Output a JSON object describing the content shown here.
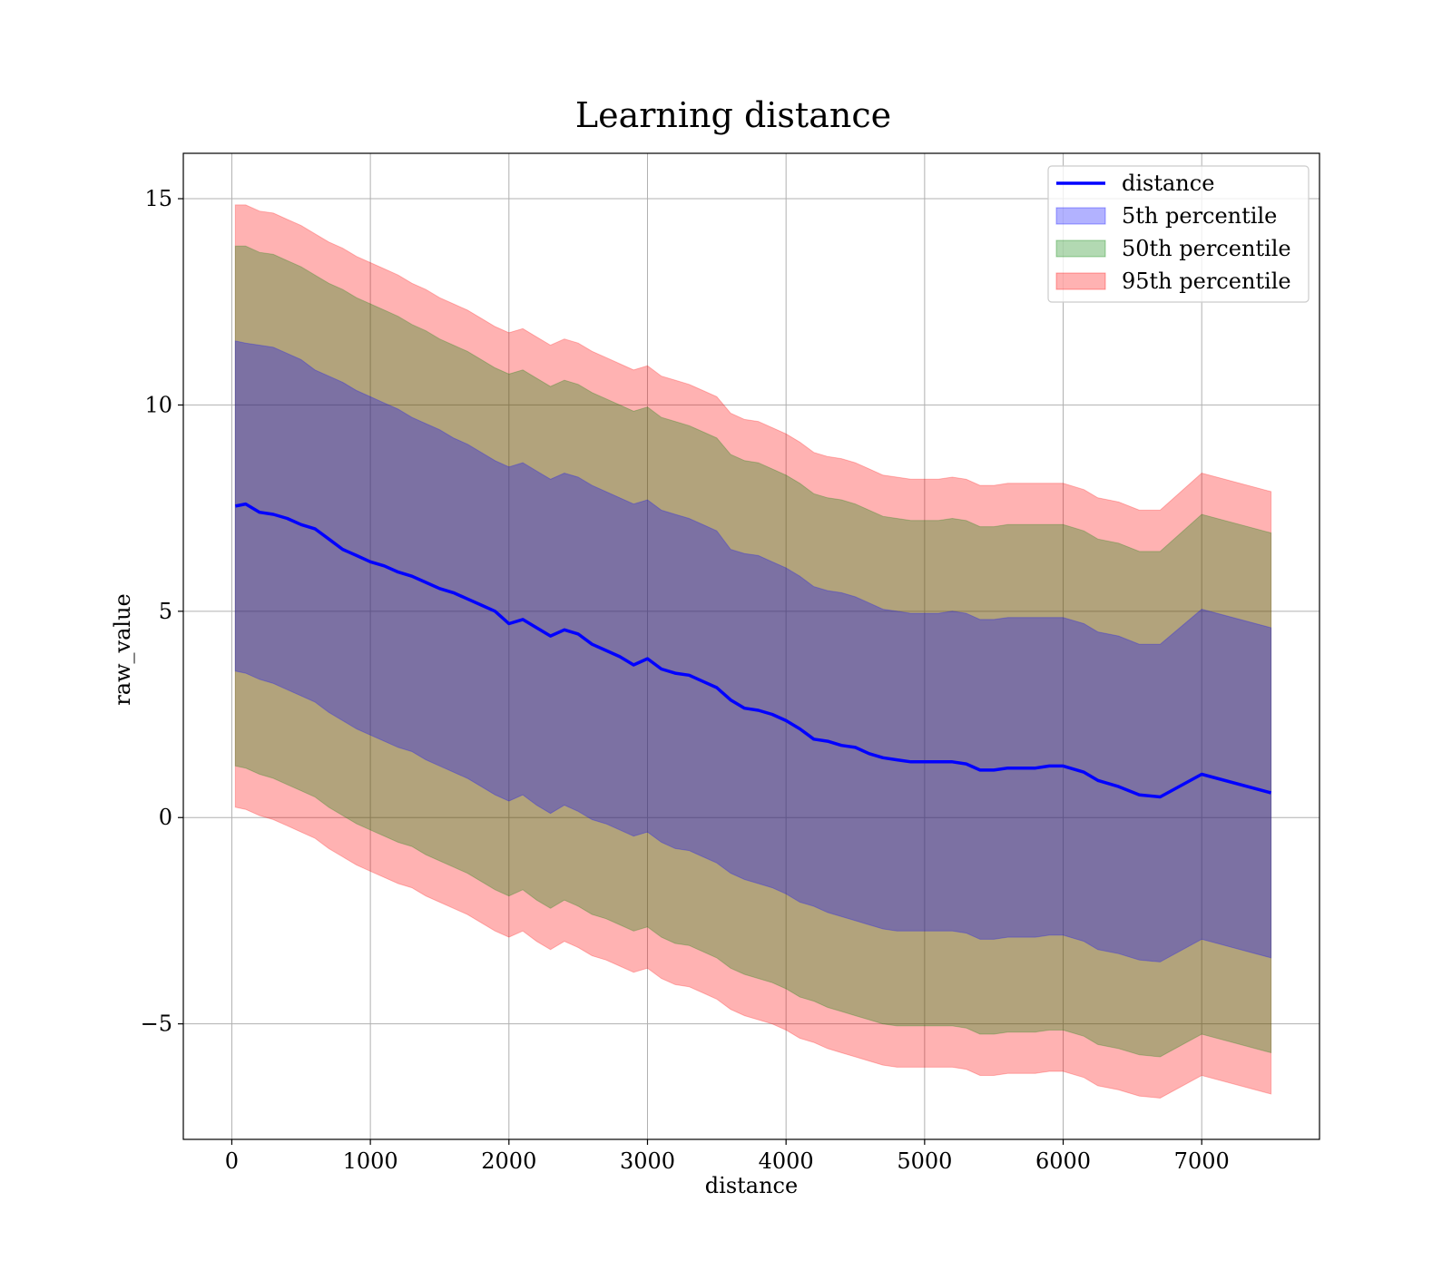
{
  "chart_data": {
    "type": "line",
    "title": "Learning distance",
    "xlabel": "distance",
    "ylabel": "raw_value",
    "xlim": [
      -350,
      7850
    ],
    "ylim": [
      -7.8,
      16.1
    ],
    "xticks": [
      0,
      1000,
      2000,
      3000,
      4000,
      5000,
      6000,
      7000
    ],
    "xtick_labels": [
      "0",
      "1000",
      "2000",
      "3000",
      "4000",
      "5000",
      "6000",
      "7000"
    ],
    "yticks": [
      -5,
      0,
      5,
      10,
      15
    ],
    "ytick_labels": [
      "−5",
      "0",
      "5",
      "10",
      "15"
    ],
    "grid": true,
    "legend_position": "top-right",
    "x": [
      25,
      100,
      200,
      300,
      400,
      500,
      600,
      700,
      800,
      900,
      1000,
      1100,
      1200,
      1300,
      1400,
      1500,
      1600,
      1700,
      1800,
      1900,
      2000,
      2100,
      2200,
      2300,
      2400,
      2500,
      2600,
      2700,
      2800,
      2900,
      3000,
      3100,
      3200,
      3300,
      3400,
      3500,
      3600,
      3700,
      3800,
      3900,
      4000,
      4100,
      4200,
      4300,
      4400,
      4500,
      4600,
      4700,
      4800,
      4900,
      5000,
      5100,
      5200,
      5300,
      5400,
      5500,
      5600,
      5700,
      5800,
      5900,
      6000,
      6150,
      6250,
      6400,
      6550,
      6700,
      7000,
      7500
    ],
    "series": [
      {
        "name": "distance",
        "kind": "line",
        "color": "#0000ff",
        "values": [
          7.55,
          7.6,
          7.4,
          7.35,
          7.25,
          7.1,
          7.0,
          6.75,
          6.5,
          6.35,
          6.2,
          6.1,
          5.95,
          5.85,
          5.7,
          5.55,
          5.45,
          5.3,
          5.15,
          5.0,
          4.7,
          4.8,
          4.6,
          4.4,
          4.55,
          4.45,
          4.2,
          4.05,
          3.9,
          3.7,
          3.85,
          3.6,
          3.5,
          3.45,
          3.3,
          3.15,
          2.85,
          2.65,
          2.6,
          2.5,
          2.35,
          2.15,
          1.9,
          1.85,
          1.75,
          1.7,
          1.55,
          1.45,
          1.4,
          1.35,
          1.35,
          1.35,
          1.35,
          1.3,
          1.15,
          1.15,
          1.2,
          1.2,
          1.2,
          1.25,
          1.25,
          1.1,
          0.9,
          0.75,
          0.55,
          0.5,
          1.05,
          0.6
        ]
      },
      {
        "name": "5th percentile",
        "kind": "band",
        "color": "#0000ff",
        "upper": [
          11.55,
          11.5,
          11.45,
          11.4,
          11.25,
          11.1,
          10.85,
          10.7,
          10.55,
          10.35,
          10.2,
          10.05,
          9.9,
          9.7,
          9.55,
          9.4,
          9.2,
          9.05,
          8.85,
          8.65,
          8.5,
          8.6,
          8.4,
          8.2,
          8.35,
          8.25,
          8.05,
          7.9,
          7.75,
          7.6,
          7.7,
          7.45,
          7.35,
          7.25,
          7.1,
          6.95,
          6.5,
          6.4,
          6.35,
          6.2,
          6.05,
          5.85,
          5.6,
          5.5,
          5.45,
          5.35,
          5.2,
          5.05,
          5.0,
          4.95,
          4.95,
          4.95,
          5.0,
          4.95,
          4.8,
          4.8,
          4.85,
          4.85,
          4.85,
          4.85,
          4.85,
          4.7,
          4.5,
          4.4,
          4.2,
          4.2,
          5.05,
          4.6
        ],
        "lower": [
          3.55,
          3.5,
          3.35,
          3.25,
          3.1,
          2.95,
          2.8,
          2.55,
          2.35,
          2.15,
          2.0,
          1.85,
          1.7,
          1.6,
          1.4,
          1.25,
          1.1,
          0.95,
          0.75,
          0.55,
          0.4,
          0.55,
          0.3,
          0.1,
          0.3,
          0.15,
          -0.05,
          -0.15,
          -0.3,
          -0.45,
          -0.35,
          -0.6,
          -0.75,
          -0.8,
          -0.95,
          -1.1,
          -1.35,
          -1.5,
          -1.6,
          -1.7,
          -1.85,
          -2.05,
          -2.15,
          -2.3,
          -2.4,
          -2.5,
          -2.6,
          -2.7,
          -2.75,
          -2.75,
          -2.75,
          -2.75,
          -2.75,
          -2.8,
          -2.95,
          -2.95,
          -2.9,
          -2.9,
          -2.9,
          -2.85,
          -2.85,
          -3.0,
          -3.2,
          -3.3,
          -3.45,
          -3.5,
          -2.95,
          -3.4
        ]
      },
      {
        "name": "50th percentile",
        "kind": "band",
        "color": "#008000",
        "upper": [
          13.85,
          13.85,
          13.7,
          13.65,
          13.5,
          13.35,
          13.15,
          12.95,
          12.8,
          12.6,
          12.45,
          12.3,
          12.15,
          11.95,
          11.8,
          11.6,
          11.45,
          11.3,
          11.1,
          10.9,
          10.75,
          10.85,
          10.65,
          10.45,
          10.6,
          10.5,
          10.3,
          10.15,
          10.0,
          9.85,
          9.95,
          9.7,
          9.6,
          9.5,
          9.35,
          9.2,
          8.8,
          8.65,
          8.6,
          8.45,
          8.3,
          8.1,
          7.85,
          7.75,
          7.7,
          7.6,
          7.45,
          7.3,
          7.25,
          7.2,
          7.2,
          7.2,
          7.25,
          7.2,
          7.05,
          7.05,
          7.1,
          7.1,
          7.1,
          7.1,
          7.1,
          6.95,
          6.75,
          6.65,
          6.45,
          6.45,
          7.35,
          6.9
        ],
        "lower": [
          1.25,
          1.2,
          1.05,
          0.95,
          0.8,
          0.65,
          0.5,
          0.25,
          0.05,
          -0.15,
          -0.3,
          -0.45,
          -0.6,
          -0.7,
          -0.9,
          -1.05,
          -1.2,
          -1.35,
          -1.55,
          -1.75,
          -1.9,
          -1.75,
          -2.0,
          -2.2,
          -2.0,
          -2.15,
          -2.35,
          -2.45,
          -2.6,
          -2.75,
          -2.65,
          -2.9,
          -3.05,
          -3.1,
          -3.25,
          -3.4,
          -3.65,
          -3.8,
          -3.9,
          -4.0,
          -4.15,
          -4.35,
          -4.45,
          -4.6,
          -4.7,
          -4.8,
          -4.9,
          -5.0,
          -5.05,
          -5.05,
          -5.05,
          -5.05,
          -5.05,
          -5.1,
          -5.25,
          -5.25,
          -5.2,
          -5.2,
          -5.2,
          -5.15,
          -5.15,
          -5.3,
          -5.5,
          -5.6,
          -5.75,
          -5.8,
          -5.25,
          -5.7
        ]
      },
      {
        "name": "95th percentile",
        "kind": "band",
        "color": "#ff0000",
        "upper": [
          14.85,
          14.85,
          14.7,
          14.65,
          14.5,
          14.35,
          14.15,
          13.95,
          13.8,
          13.6,
          13.45,
          13.3,
          13.15,
          12.95,
          12.8,
          12.6,
          12.45,
          12.3,
          12.1,
          11.9,
          11.75,
          11.85,
          11.65,
          11.45,
          11.6,
          11.5,
          11.3,
          11.15,
          11.0,
          10.85,
          10.95,
          10.7,
          10.6,
          10.5,
          10.35,
          10.2,
          9.8,
          9.65,
          9.6,
          9.45,
          9.3,
          9.1,
          8.85,
          8.75,
          8.7,
          8.6,
          8.45,
          8.3,
          8.25,
          8.2,
          8.2,
          8.2,
          8.25,
          8.2,
          8.05,
          8.05,
          8.1,
          8.1,
          8.1,
          8.1,
          8.1,
          7.95,
          7.75,
          7.65,
          7.45,
          7.45,
          8.35,
          7.9
        ],
        "lower": [
          0.25,
          0.2,
          0.05,
          -0.05,
          -0.2,
          -0.35,
          -0.5,
          -0.75,
          -0.95,
          -1.15,
          -1.3,
          -1.45,
          -1.6,
          -1.7,
          -1.9,
          -2.05,
          -2.2,
          -2.35,
          -2.55,
          -2.75,
          -2.9,
          -2.75,
          -3.0,
          -3.2,
          -3.0,
          -3.15,
          -3.35,
          -3.45,
          -3.6,
          -3.75,
          -3.65,
          -3.9,
          -4.05,
          -4.1,
          -4.25,
          -4.4,
          -4.65,
          -4.8,
          -4.9,
          -5.0,
          -5.15,
          -5.35,
          -5.45,
          -5.6,
          -5.7,
          -5.8,
          -5.9,
          -6.0,
          -6.05,
          -6.05,
          -6.05,
          -6.05,
          -6.05,
          -6.1,
          -6.25,
          -6.25,
          -6.2,
          -6.2,
          -6.2,
          -6.15,
          -6.15,
          -6.3,
          -6.5,
          -6.6,
          -6.75,
          -6.8,
          -6.25,
          -6.7
        ]
      }
    ]
  }
}
